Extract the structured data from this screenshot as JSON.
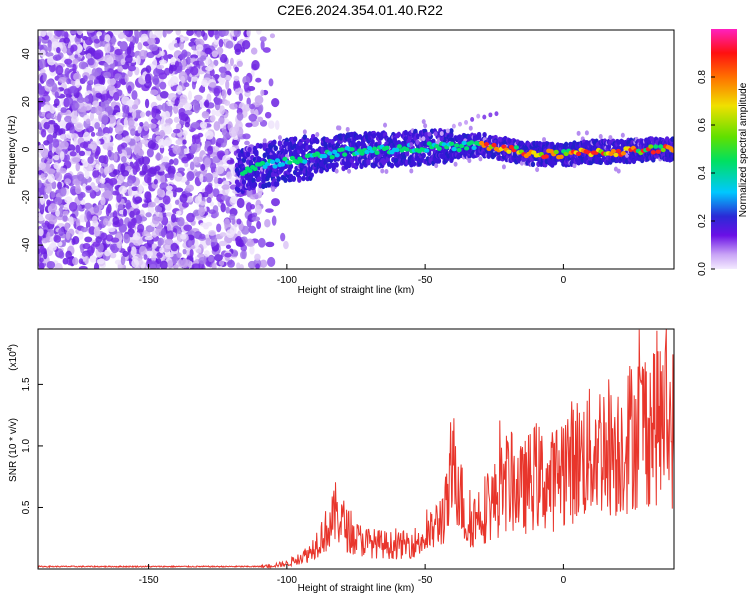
{
  "title": "C2E6.2024.354.01.40.R22",
  "chart_data": [
    {
      "type": "heatmap",
      "xlabel": "Height of straight line (km)",
      "ylabel": "Frequency (Hz)",
      "xlim": [
        -190,
        40
      ],
      "ylim": [
        -50,
        50
      ],
      "xticks": [
        -150,
        -100,
        -50,
        0
      ],
      "yticks": [
        -40,
        -20,
        0,
        20,
        40
      ],
      "colorbar": {
        "label": "Normalized spectral amplitude",
        "range": [
          0,
          1
        ],
        "ticks": [
          0.0,
          0.2,
          0.4,
          0.6,
          0.8
        ],
        "tick_labels": [
          "0.0",
          "0.2",
          "0.4",
          "0.6",
          "0.8"
        ]
      },
      "ridge": {
        "x": [
          -120,
          -110,
          -100,
          -90,
          -80,
          -70,
          -60,
          -50,
          -40,
          -30,
          -20,
          -10,
          0,
          10,
          20,
          30,
          40
        ],
        "frequency": [
          -10,
          -7,
          -5,
          -3,
          -1,
          0,
          0,
          1,
          1,
          2,
          0,
          -2,
          -2,
          -1,
          -1,
          0,
          0
        ]
      },
      "noise_region_x": [
        -190,
        -110
      ]
    },
    {
      "type": "line",
      "xlabel": "Height of straight line (km)",
      "ylabel": "SNR (10 * v/v)",
      "multiplier": "(x10",
      "multiplier_exp": "4",
      "multiplier_close": ")",
      "xlim": [
        -190,
        40
      ],
      "ylim": [
        0,
        1.95
      ],
      "xticks": [
        -150,
        -100,
        -50,
        0
      ],
      "yticks": [
        0.5,
        1.0,
        1.5
      ],
      "ytick_labels": [
        "0.5",
        "1.0",
        "1.5"
      ],
      "series": [
        {
          "x_knots": [
            -190,
            -110,
            -100,
            -92,
            -88,
            -84,
            -82,
            -80,
            -76,
            -70,
            -60,
            -50,
            -45,
            -42,
            -39,
            -37,
            -35,
            -30,
            -25,
            -20,
            -15,
            -10,
            -5,
            0,
            5,
            10,
            15,
            20,
            25,
            30,
            35,
            40
          ],
          "y_knots": [
            0.02,
            0.02,
            0.05,
            0.15,
            0.3,
            0.42,
            0.55,
            0.45,
            0.3,
            0.25,
            0.22,
            0.28,
            0.45,
            0.6,
            1.05,
            0.7,
            0.4,
            0.55,
            0.65,
            0.85,
            0.75,
            0.9,
            0.8,
            1.0,
            1.05,
            1.1,
            1.2,
            1.15,
            1.3,
            1.4,
            1.45,
            1.35
          ],
          "color": "#e8352b"
        }
      ]
    }
  ]
}
